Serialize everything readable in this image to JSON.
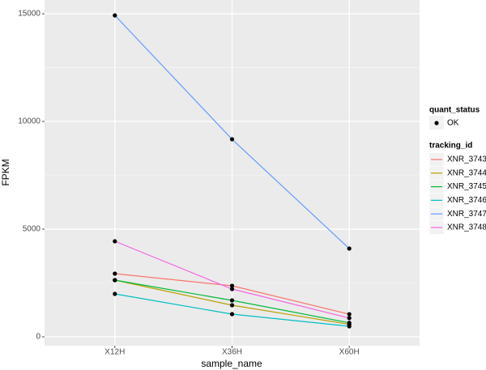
{
  "chart_data": {
    "type": "line",
    "x_label": "sample_name",
    "y_label": "FPKM",
    "categories": [
      "X12H",
      "X36H",
      "X60H"
    ],
    "series": [
      {
        "name": "XNR_3743",
        "color": "#f8766d",
        "values": [
          2932,
          2368,
          1050
        ]
      },
      {
        "name": "XNR_3744",
        "color": "#b79f00",
        "values": [
          2631,
          1466,
          580
        ]
      },
      {
        "name": "XNR_3745",
        "color": "#00ba38",
        "values": [
          2631,
          1692,
          650
        ]
      },
      {
        "name": "XNR_3746",
        "color": "#00bfc4",
        "values": [
          1992,
          1052,
          489
        ]
      },
      {
        "name": "XNR_3747",
        "color": "#619cff",
        "values": [
          14925,
          9172,
          4097
        ]
      },
      {
        "name": "XNR_3748",
        "color": "#f564e3",
        "values": [
          4436,
          2218,
          870
        ]
      }
    ],
    "ylim": [
      -414,
      15640
    ],
    "yticks": [
      0,
      5000,
      10000,
      15000
    ],
    "grid": true,
    "point_color": "#000000",
    "point_legend_title": "quant_status",
    "point_legend_label": "OK",
    "legend_title": "tracking_id"
  }
}
